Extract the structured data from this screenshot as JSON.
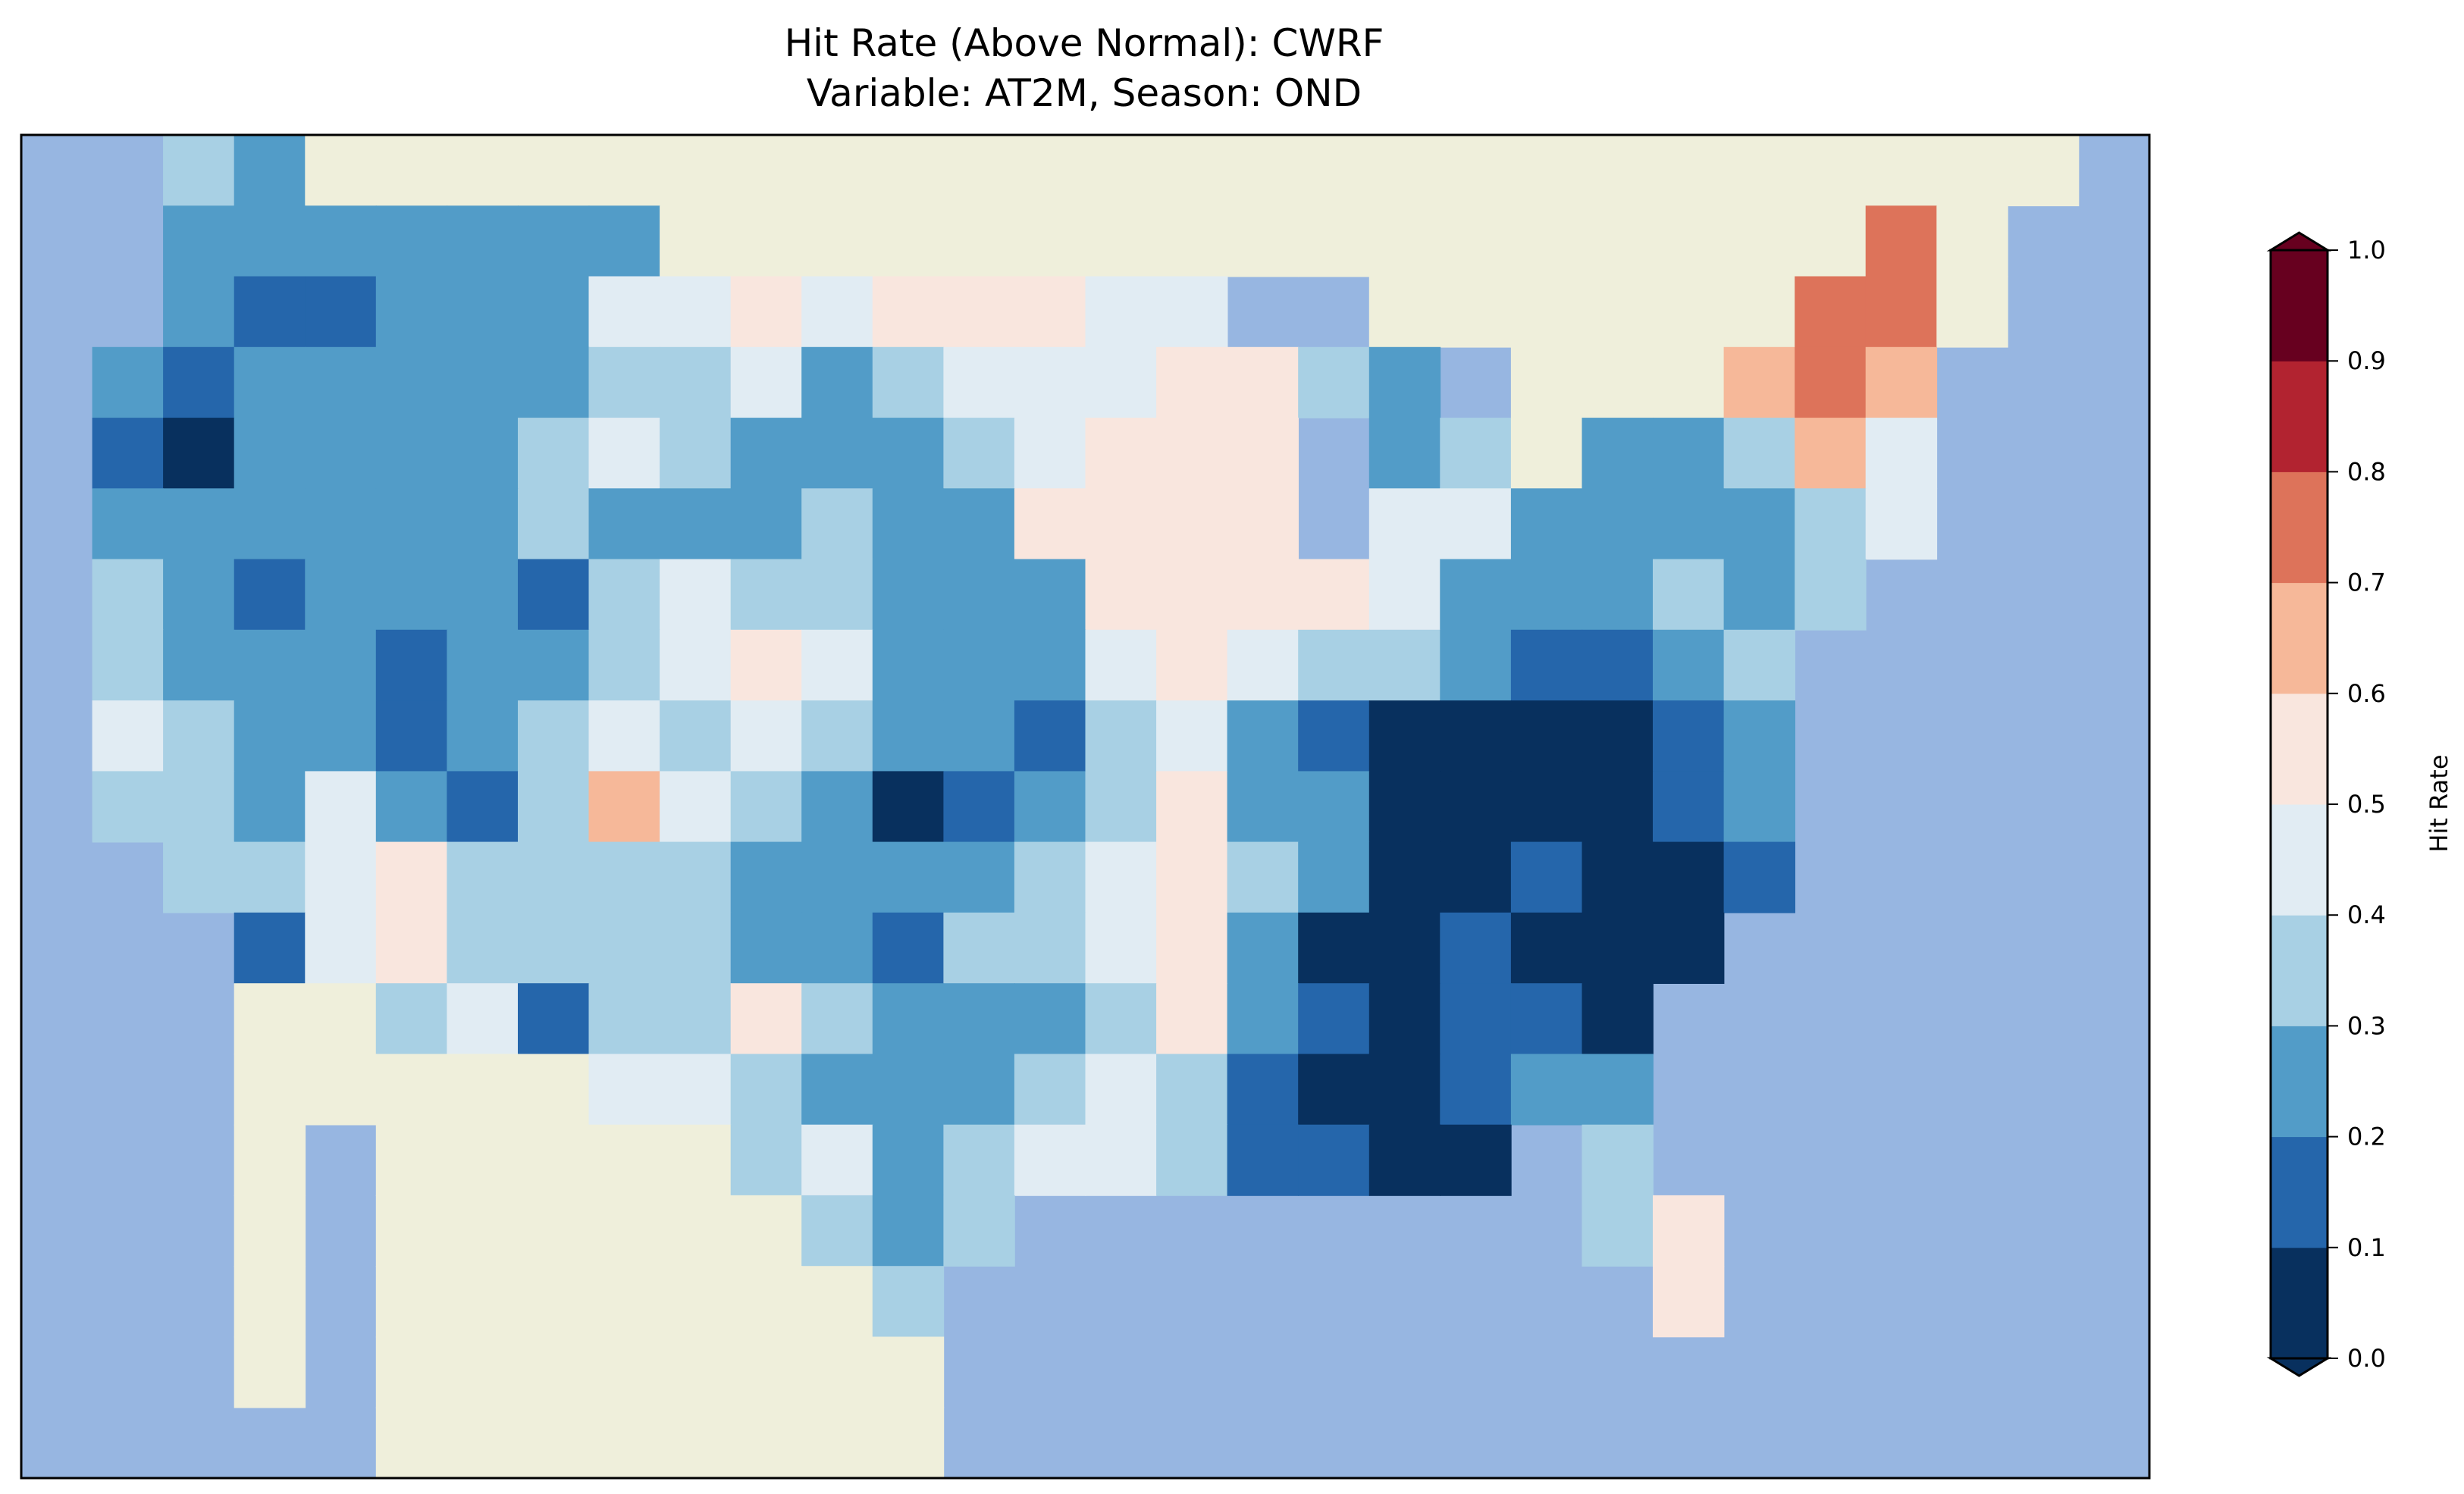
{
  "chart_data": {
    "type": "heatmap",
    "title": [
      "Hit Rate (Above Normal): CWRF",
      "Variable: AT2M, Season: OND"
    ],
    "colorbar": {
      "label": "Hit Rate",
      "ticks": [
        "0.0",
        "0.1",
        "0.2",
        "0.3",
        "0.4",
        "0.5",
        "0.6",
        "0.7",
        "0.8",
        "0.9",
        "1.0"
      ],
      "range": [
        0,
        1
      ],
      "extend": "both",
      "bin_colors": [
        "#08305e",
        "#2566ab",
        "#529cc8",
        "#a8d0e4",
        "#e1ecf3",
        "#f9e6de",
        "#f6b899",
        "#dd735a",
        "#b22330",
        "#67001f"
      ]
    },
    "background_colors": {
      "ocean": "#97b6e1",
      "land": "#efefdb"
    },
    "grid_note": "coarse approximation of map; value = colorbar bin index (0 = 0.0-0.1 ... 9 = 0.9-1.0), -1 = ocean/lake, -2 = non-US land",
    "grid": [
      [
        -1,
        -1,
        3,
        2,
        -2,
        -2,
        -2,
        -2,
        -2,
        -2,
        -2,
        -2,
        -2,
        -2,
        -2,
        -2,
        -2,
        -2,
        -2,
        -2,
        -2,
        -2,
        -2,
        -2,
        -2,
        -2,
        -2,
        -2,
        -2,
        -1
      ],
      [
        -1,
        -1,
        2,
        2,
        2,
        2,
        2,
        2,
        2,
        -2,
        -2,
        -2,
        -2,
        -2,
        -2,
        -2,
        -2,
        -2,
        -2,
        -2,
        -2,
        -2,
        -2,
        -2,
        -2,
        -2,
        7,
        -2,
        -1,
        -1
      ],
      [
        -1,
        -1,
        2,
        1,
        1,
        2,
        2,
        2,
        4,
        4,
        5,
        4,
        5,
        5,
        5,
        4,
        4,
        -1,
        -1,
        -2,
        -2,
        -2,
        -2,
        -2,
        -2,
        7,
        7,
        -2,
        -1,
        -1
      ],
      [
        -1,
        2,
        1,
        2,
        2,
        2,
        2,
        2,
        3,
        3,
        4,
        2,
        3,
        4,
        4,
        4,
        5,
        5,
        3,
        2,
        -1,
        -2,
        -2,
        -2,
        6,
        7,
        6,
        -1,
        -1,
        -1
      ],
      [
        -1,
        1,
        0,
        2,
        2,
        2,
        2,
        3,
        4,
        3,
        2,
        2,
        2,
        3,
        4,
        5,
        5,
        5,
        -1,
        2,
        3,
        -2,
        2,
        2,
        3,
        6,
        4,
        -1,
        -1,
        -1
      ],
      [
        -1,
        2,
        2,
        2,
        2,
        2,
        2,
        3,
        2,
        2,
        2,
        3,
        2,
        2,
        5,
        5,
        5,
        5,
        -1,
        4,
        4,
        2,
        2,
        2,
        2,
        3,
        4,
        -1,
        -1,
        -1
      ],
      [
        -1,
        3,
        2,
        1,
        2,
        2,
        2,
        1,
        3,
        4,
        3,
        3,
        2,
        2,
        2,
        5,
        5,
        5,
        5,
        4,
        2,
        2,
        2,
        3,
        2,
        3,
        -1,
        -1,
        -1,
        -1
      ],
      [
        -1,
        3,
        2,
        2,
        2,
        1,
        2,
        2,
        3,
        4,
        5,
        4,
        2,
        2,
        2,
        4,
        5,
        4,
        3,
        3,
        2,
        1,
        1,
        2,
        3,
        -1,
        -1,
        -1,
        -1,
        -1
      ],
      [
        -1,
        4,
        3,
        2,
        2,
        1,
        2,
        3,
        4,
        3,
        4,
        3,
        2,
        2,
        1,
        3,
        4,
        2,
        1,
        0,
        0,
        0,
        0,
        1,
        2,
        -1,
        -1,
        -1,
        -1,
        -1
      ],
      [
        -1,
        3,
        3,
        2,
        4,
        2,
        1,
        3,
        6,
        4,
        3,
        2,
        0,
        1,
        2,
        3,
        5,
        2,
        2,
        0,
        0,
        0,
        0,
        1,
        2,
        -1,
        -1,
        -1,
        -1,
        -1
      ],
      [
        -1,
        -1,
        3,
        3,
        4,
        5,
        3,
        3,
        3,
        3,
        2,
        2,
        2,
        2,
        3,
        4,
        5,
        3,
        2,
        0,
        0,
        1,
        0,
        0,
        1,
        -1,
        -1,
        -1,
        -1,
        -1
      ],
      [
        -1,
        -1,
        -1,
        1,
        4,
        5,
        3,
        3,
        3,
        3,
        2,
        2,
        1,
        3,
        3,
        4,
        5,
        2,
        0,
        0,
        1,
        0,
        0,
        0,
        -1,
        -1,
        -1,
        -1,
        -1,
        -1
      ],
      [
        -1,
        -1,
        -1,
        -2,
        -2,
        3,
        4,
        1,
        3,
        3,
        5,
        3,
        2,
        2,
        2,
        3,
        5,
        2,
        1,
        0,
        1,
        1,
        0,
        -1,
        -1,
        -1,
        -1,
        -1,
        -1,
        -1
      ],
      [
        -1,
        -1,
        -1,
        -2,
        -2,
        -2,
        -2,
        -2,
        4,
        4,
        3,
        2,
        2,
        2,
        3,
        4,
        3,
        1,
        0,
        0,
        1,
        2,
        2,
        -1,
        -1,
        -1,
        -1,
        -1,
        -1,
        -1
      ],
      [
        -1,
        -1,
        -1,
        -2,
        -1,
        -2,
        -2,
        -2,
        -2,
        -2,
        3,
        4,
        2,
        3,
        4,
        4,
        3,
        1,
        1,
        0,
        0,
        -1,
        3,
        -1,
        -1,
        -1,
        -1,
        -1,
        -1,
        -1
      ],
      [
        -1,
        -1,
        -1,
        -2,
        -1,
        -2,
        -2,
        -2,
        -2,
        -2,
        -2,
        3,
        2,
        3,
        -1,
        -1,
        -1,
        -1,
        -1,
        -1,
        -1,
        -1,
        3,
        5,
        -1,
        -1,
        -1,
        -1,
        -1,
        -1
      ],
      [
        -1,
        -1,
        -1,
        -2,
        -1,
        -2,
        -2,
        -2,
        -2,
        -2,
        -2,
        -2,
        3,
        -1,
        -1,
        -1,
        -1,
        -1,
        -1,
        -1,
        -1,
        -1,
        -1,
        5,
        -1,
        -1,
        -1,
        -1,
        -1,
        -1
      ],
      [
        -1,
        -1,
        -1,
        -2,
        -1,
        -2,
        -2,
        -2,
        -2,
        -2,
        -2,
        -2,
        -2,
        -1,
        -1,
        -1,
        -1,
        -1,
        -1,
        -1,
        -1,
        -1,
        -1,
        -1,
        -1,
        -1,
        -1,
        -1,
        -1,
        -1
      ],
      [
        -1,
        -1,
        -1,
        -1,
        -1,
        -2,
        -2,
        -2,
        -2,
        -2,
        -2,
        -2,
        -2,
        -1,
        -1,
        -1,
        -1,
        -1,
        -1,
        -1,
        -1,
        -1,
        -1,
        -1,
        -1,
        -1,
        -1,
        -1,
        -1,
        -1
      ]
    ]
  }
}
